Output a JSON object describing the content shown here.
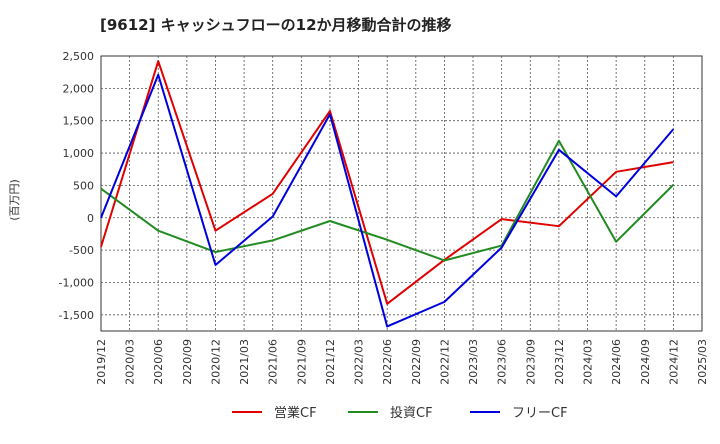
{
  "chart_data": {
    "type": "line",
    "title": "[9612]  キャッシュフローの12か月移動合計の推移",
    "ylabel": "(百万円)",
    "xlabel": "",
    "ylim": [
      -1750,
      2500
    ],
    "yticks": [
      2500,
      2000,
      1500,
      1000,
      500,
      0,
      -500,
      -1000,
      -1500
    ],
    "ytick_labels": [
      "2,500",
      "2,000",
      "1,500",
      "1,000",
      "500",
      "0",
      "-500",
      "-1,000",
      "-1,500"
    ],
    "x_categories": [
      "2019/12",
      "2020/03",
      "2020/06",
      "2020/09",
      "2020/12",
      "2021/03",
      "2021/06",
      "2021/09",
      "2021/12",
      "2022/03",
      "2022/06",
      "2022/09",
      "2022/12",
      "2023/03",
      "2023/06",
      "2023/09",
      "2023/12",
      "2024/03",
      "2024/06",
      "2024/09",
      "2024/12",
      "2025/03"
    ],
    "grid": true,
    "legend_position": "bottom",
    "series": [
      {
        "name": "営業CF",
        "color": "#e00000",
        "points": [
          [
            "2019/12",
            -450
          ],
          [
            "2020/06",
            2420
          ],
          [
            "2020/12",
            -200
          ],
          [
            "2021/06",
            370
          ],
          [
            "2021/12",
            1650
          ],
          [
            "2022/06",
            -1330
          ],
          [
            "2022/12",
            -650
          ],
          [
            "2023/06",
            -20
          ],
          [
            "2023/12",
            -130
          ],
          [
            "2024/06",
            710
          ],
          [
            "2024/12",
            860
          ]
        ]
      },
      {
        "name": "投資CF",
        "color": "#228b22",
        "points": [
          [
            "2019/12",
            450
          ],
          [
            "2020/06",
            -200
          ],
          [
            "2020/12",
            -530
          ],
          [
            "2021/06",
            -350
          ],
          [
            "2021/12",
            -50
          ],
          [
            "2022/06",
            -340
          ],
          [
            "2022/12",
            -660
          ],
          [
            "2023/06",
            -430
          ],
          [
            "2023/12",
            1190
          ],
          [
            "2024/06",
            -370
          ],
          [
            "2024/12",
            510
          ]
        ]
      },
      {
        "name": "フリーCF",
        "color": "#0000dd",
        "points": [
          [
            "2019/12",
            0
          ],
          [
            "2020/06",
            2210
          ],
          [
            "2020/12",
            -730
          ],
          [
            "2021/06",
            20
          ],
          [
            "2021/12",
            1600
          ],
          [
            "2022/06",
            -1680
          ],
          [
            "2022/12",
            -1300
          ],
          [
            "2023/06",
            -460
          ],
          [
            "2023/12",
            1050
          ],
          [
            "2024/06",
            330
          ],
          [
            "2024/12",
            1370
          ]
        ]
      }
    ]
  }
}
